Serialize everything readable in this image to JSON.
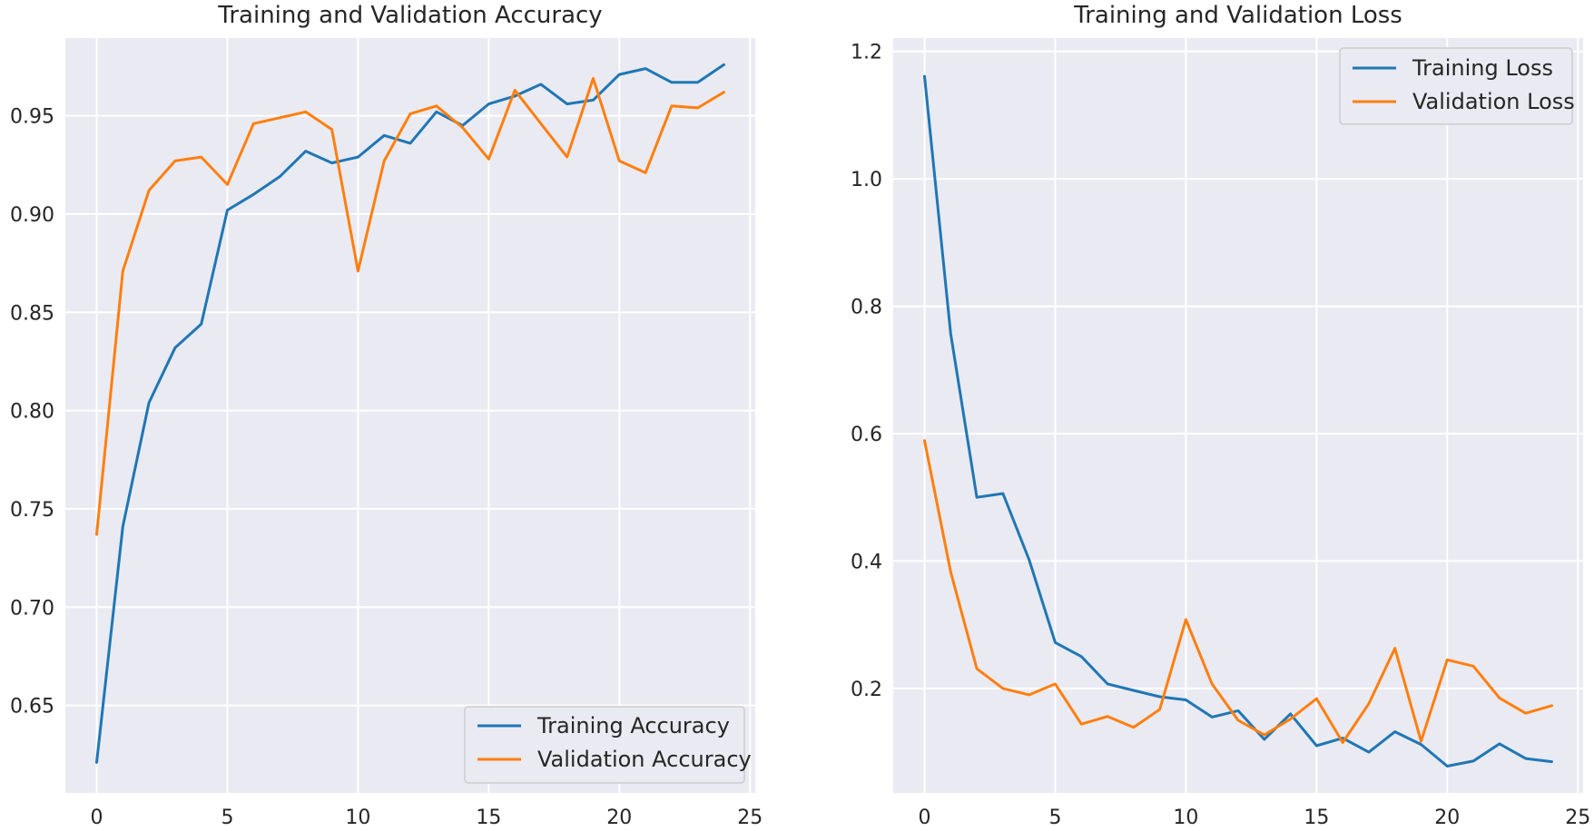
{
  "chart_data": [
    {
      "type": "line",
      "title": "Training and Validation Accuracy",
      "xlabel": "",
      "ylabel": "",
      "xlim": [
        -1.2,
        25.2
      ],
      "ylim": [
        0.6055,
        0.9895
      ],
      "xticks": [
        0,
        5,
        10,
        15,
        20,
        25
      ],
      "xtick_labels": [
        "0",
        "5",
        "10",
        "15",
        "20",
        "25"
      ],
      "yticks": [
        0.65,
        0.7,
        0.75,
        0.8,
        0.85,
        0.9,
        0.95
      ],
      "ytick_labels": [
        "0.65",
        "0.70",
        "0.75",
        "0.80",
        "0.85",
        "0.90",
        "0.95"
      ],
      "grid": true,
      "legend_position": "lower-right",
      "x": [
        0,
        1,
        2,
        3,
        4,
        5,
        6,
        7,
        8,
        9,
        10,
        11,
        12,
        13,
        14,
        15,
        16,
        17,
        18,
        19,
        20,
        21,
        22,
        23,
        24
      ],
      "series": [
        {
          "name": "Training Accuracy",
          "color": "#1f77b4",
          "values": [
            0.621,
            0.741,
            0.804,
            0.832,
            0.844,
            0.902,
            0.91,
            0.919,
            0.932,
            0.926,
            0.929,
            0.94,
            0.936,
            0.952,
            0.945,
            0.956,
            0.96,
            0.966,
            0.956,
            0.958,
            0.971,
            0.974,
            0.967,
            0.967,
            0.976
          ]
        },
        {
          "name": "Validation Accuracy",
          "color": "#ff7f0e",
          "values": [
            0.737,
            0.871,
            0.912,
            0.927,
            0.929,
            0.915,
            0.946,
            0.949,
            0.952,
            0.943,
            0.871,
            0.927,
            0.951,
            0.955,
            0.944,
            0.928,
            0.963,
            0.946,
            0.929,
            0.969,
            0.927,
            0.921,
            0.955,
            0.954,
            0.962
          ]
        }
      ]
    },
    {
      "type": "line",
      "title": "Training and Validation Loss",
      "xlabel": "",
      "ylabel": "",
      "xlim": [
        -1.2,
        25.2
      ],
      "ylim": [
        0.036,
        1.221
      ],
      "xticks": [
        0,
        5,
        10,
        15,
        20,
        25
      ],
      "xtick_labels": [
        "0",
        "5",
        "10",
        "15",
        "20",
        "25"
      ],
      "yticks": [
        0.2,
        0.4,
        0.6,
        0.8,
        1.0,
        1.2
      ],
      "ytick_labels": [
        "0.2",
        "0.4",
        "0.6",
        "0.8",
        "1.0",
        "1.2"
      ],
      "grid": true,
      "legend_position": "upper-right",
      "x": [
        0,
        1,
        2,
        3,
        4,
        5,
        6,
        7,
        8,
        9,
        10,
        11,
        12,
        13,
        14,
        15,
        16,
        17,
        18,
        19,
        20,
        21,
        22,
        23,
        24
      ],
      "series": [
        {
          "name": "Training Loss",
          "color": "#1f77b4",
          "values": [
            1.161,
            0.757,
            0.5,
            0.506,
            0.402,
            0.272,
            0.25,
            0.207,
            0.197,
            0.187,
            0.182,
            0.155,
            0.165,
            0.12,
            0.16,
            0.11,
            0.122,
            0.1,
            0.132,
            0.112,
            0.078,
            0.086,
            0.113,
            0.09,
            0.085
          ]
        },
        {
          "name": "Validation Loss",
          "color": "#ff7f0e",
          "values": [
            0.589,
            0.383,
            0.231,
            0.2,
            0.19,
            0.207,
            0.144,
            0.156,
            0.139,
            0.167,
            0.308,
            0.207,
            0.15,
            0.127,
            0.152,
            0.184,
            0.115,
            0.176,
            0.263,
            0.117,
            0.245,
            0.235,
            0.185,
            0.161,
            0.173
          ]
        }
      ]
    }
  ]
}
